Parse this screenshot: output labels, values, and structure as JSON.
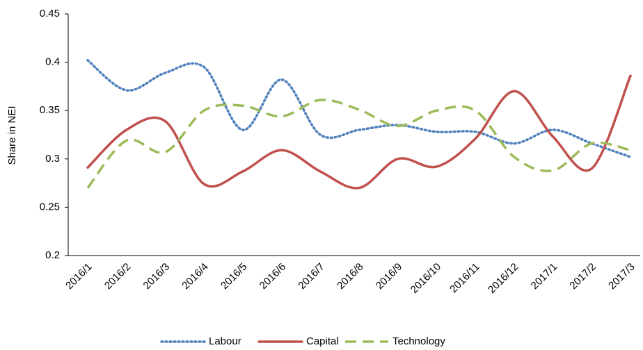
{
  "chart_data": {
    "type": "line",
    "ylabel": "Share in NEI",
    "categories": [
      "2016/1",
      "2016/2",
      "2016/3",
      "2016/4",
      "2016/5",
      "2016/6",
      "2016/7",
      "2016/8",
      "2016/9",
      "2016/10",
      "2016/11",
      "2016/12",
      "2017/1",
      "2017/2",
      "2017/3"
    ],
    "series": [
      {
        "name": "Labour",
        "color": "#4f81bd",
        "dash": "dotted",
        "values": [
          0.402,
          0.371,
          0.389,
          0.395,
          0.33,
          0.382,
          0.325,
          0.33,
          0.335,
          0.328,
          0.328,
          0.316,
          0.33,
          0.316,
          0.302
        ]
      },
      {
        "name": "Capital",
        "color": "#c0504d",
        "dash": "solid",
        "values": [
          0.291,
          0.33,
          0.339,
          0.274,
          0.287,
          0.309,
          0.287,
          0.27,
          0.3,
          0.292,
          0.321,
          0.37,
          0.323,
          0.29,
          0.386
        ]
      },
      {
        "name": "Technology",
        "color": "#9bbb59",
        "dash": "dashed",
        "values": [
          0.27,
          0.319,
          0.307,
          0.35,
          0.355,
          0.344,
          0.361,
          0.351,
          0.334,
          0.35,
          0.35,
          0.302,
          0.288,
          0.316,
          0.309
        ]
      }
    ],
    "ylim": [
      0.2,
      0.45
    ],
    "yticks": [
      0.2,
      0.25,
      0.3,
      0.35,
      0.4,
      0.45
    ],
    "grid": false,
    "legend": "bottom"
  }
}
